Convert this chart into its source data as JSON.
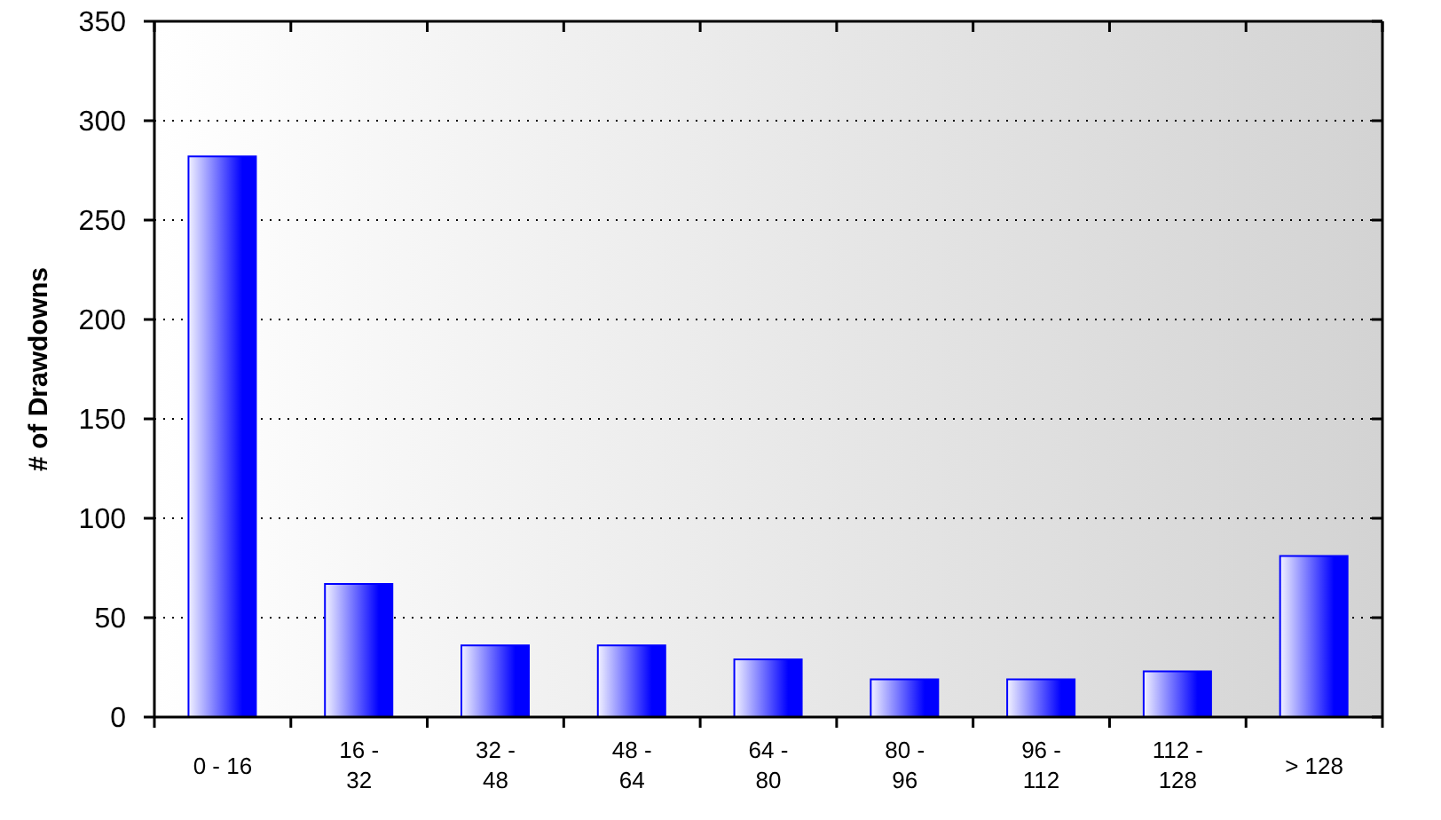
{
  "chart_data": {
    "type": "bar",
    "ylabel": "# of Drawdowns",
    "categories": [
      "0 - 16",
      "16 - 32",
      "32 - 48",
      "48 - 64",
      "64 - 80",
      "80 - 96",
      "96 - 112",
      "112 - 128",
      "> 128"
    ],
    "values": [
      282,
      67,
      36,
      36,
      29,
      19,
      19,
      23,
      81
    ],
    "color": "#0000ff",
    "ylim": [
      0,
      350
    ],
    "yticks": [
      0,
      50,
      100,
      150,
      200,
      250,
      300,
      350
    ],
    "grid": "y"
  }
}
